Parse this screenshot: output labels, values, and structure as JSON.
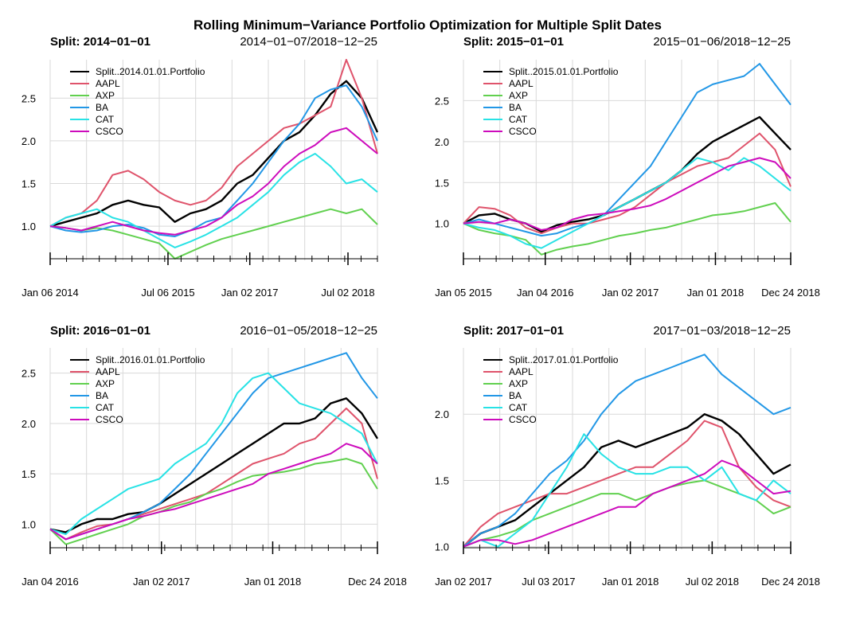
{
  "title": "Rolling Minimum−Variance Portfolio Optimization for Multiple Split Dates",
  "colors": {
    "Portfolio": "#000000",
    "AAPL": "#DF536B",
    "AXP": "#61D04F",
    "BA": "#2297E6",
    "CAT": "#28E2E5",
    "CSCO": "#CD0BBC"
  },
  "chart_data": [
    {
      "type": "line",
      "split_label": "Split:  2014−01−01",
      "range_label": "2014−01−07/2018−12−25",
      "xlabels": [
        "Jan 06 2014",
        "Jul 06 2015",
        "Jan 02 2017",
        "Jul 02 2018"
      ],
      "xlabel_pos": [
        0,
        0.36,
        0.61,
        0.91
      ],
      "ylim": [
        0.6,
        2.95
      ],
      "yticks": [
        "1.0",
        "1.5",
        "2.0",
        "2.5"
      ],
      "grid": true,
      "legend": "top-left",
      "series": [
        {
          "name": "Split..2014.01.01.Portfolio",
          "color_key": "Portfolio",
          "values": [
            1.0,
            1.05,
            1.1,
            1.15,
            1.25,
            1.3,
            1.25,
            1.22,
            1.05,
            1.15,
            1.2,
            1.3,
            1.5,
            1.6,
            1.8,
            2.0,
            2.1,
            2.3,
            2.55,
            2.7,
            2.5,
            2.1
          ]
        },
        {
          "name": "AAPL",
          "color_key": "AAPL",
          "values": [
            1.0,
            1.1,
            1.15,
            1.3,
            1.6,
            1.65,
            1.55,
            1.4,
            1.3,
            1.25,
            1.3,
            1.45,
            1.7,
            1.85,
            2.0,
            2.15,
            2.2,
            2.3,
            2.4,
            2.95,
            2.5,
            1.85
          ]
        },
        {
          "name": "AXP",
          "color_key": "AXP",
          "values": [
            1.0,
            0.98,
            0.95,
            0.98,
            0.95,
            0.9,
            0.85,
            0.8,
            0.62,
            0.7,
            0.78,
            0.85,
            0.9,
            0.95,
            1.0,
            1.05,
            1.1,
            1.15,
            1.2,
            1.15,
            1.2,
            1.02
          ]
        },
        {
          "name": "BA",
          "color_key": "BA",
          "values": [
            1.0,
            0.95,
            0.93,
            0.95,
            1.0,
            1.02,
            0.98,
            0.9,
            0.88,
            0.95,
            1.05,
            1.1,
            1.3,
            1.5,
            1.75,
            2.0,
            2.2,
            2.5,
            2.6,
            2.65,
            2.4,
            2.0
          ]
        },
        {
          "name": "CAT",
          "color_key": "CAT",
          "values": [
            1.0,
            1.1,
            1.15,
            1.2,
            1.1,
            1.05,
            0.95,
            0.85,
            0.75,
            0.82,
            0.9,
            1.0,
            1.1,
            1.25,
            1.4,
            1.6,
            1.75,
            1.85,
            1.7,
            1.5,
            1.55,
            1.4
          ]
        },
        {
          "name": "CSCO",
          "color_key": "CSCO",
          "values": [
            1.0,
            0.98,
            0.95,
            1.0,
            1.05,
            1.0,
            0.95,
            0.92,
            0.9,
            0.95,
            1.0,
            1.1,
            1.25,
            1.35,
            1.5,
            1.7,
            1.85,
            1.95,
            2.1,
            2.15,
            2.0,
            1.85
          ]
        }
      ]
    },
    {
      "type": "line",
      "split_label": "Split:  2015−01−01",
      "range_label": "2015−01−06/2018−12−25",
      "xlabels": [
        "Jan 05 2015",
        "Jan 04 2016",
        "Jan 02 2017",
        "Jan 01 2018",
        "Dec 24 2018"
      ],
      "xlabel_pos": [
        0,
        0.25,
        0.51,
        0.77,
        1.0
      ],
      "ylim": [
        0.55,
        3.0
      ],
      "yticks": [
        "1.0",
        "1.5",
        "2.0",
        "2.5"
      ],
      "grid": true,
      "legend": "top-left",
      "series": [
        {
          "name": "Split..2015.01.01.Portfolio",
          "color_key": "Portfolio",
          "values": [
            1.0,
            1.1,
            1.12,
            1.05,
            1.0,
            0.9,
            0.98,
            1.02,
            1.05,
            1.1,
            1.2,
            1.3,
            1.4,
            1.5,
            1.65,
            1.85,
            2.0,
            2.1,
            2.2,
            2.3,
            2.1,
            1.9
          ]
        },
        {
          "name": "AAPL",
          "color_key": "AAPL",
          "values": [
            1.0,
            1.2,
            1.18,
            1.1,
            0.95,
            0.88,
            0.95,
            1.0,
            1.0,
            1.05,
            1.1,
            1.2,
            1.35,
            1.5,
            1.6,
            1.7,
            1.75,
            1.8,
            1.95,
            2.1,
            1.9,
            1.45
          ]
        },
        {
          "name": "AXP",
          "color_key": "AXP",
          "values": [
            1.0,
            0.92,
            0.88,
            0.85,
            0.8,
            0.62,
            0.68,
            0.72,
            0.75,
            0.8,
            0.85,
            0.88,
            0.92,
            0.95,
            1.0,
            1.05,
            1.1,
            1.12,
            1.15,
            1.2,
            1.25,
            1.02
          ]
        },
        {
          "name": "BA",
          "color_key": "BA",
          "values": [
            1.0,
            1.05,
            1.0,
            0.95,
            0.9,
            0.85,
            0.88,
            0.95,
            1.0,
            1.1,
            1.3,
            1.5,
            1.7,
            2.0,
            2.3,
            2.6,
            2.7,
            2.75,
            2.8,
            2.95,
            2.7,
            2.45
          ]
        },
        {
          "name": "CAT",
          "color_key": "CAT",
          "values": [
            1.0,
            0.95,
            0.92,
            0.85,
            0.75,
            0.7,
            0.8,
            0.9,
            1.0,
            1.1,
            1.2,
            1.3,
            1.4,
            1.5,
            1.65,
            1.8,
            1.75,
            1.65,
            1.8,
            1.7,
            1.55,
            1.4
          ]
        },
        {
          "name": "CSCO",
          "color_key": "CSCO",
          "values": [
            1.0,
            1.02,
            1.0,
            1.05,
            1.0,
            0.92,
            0.95,
            1.05,
            1.1,
            1.12,
            1.15,
            1.18,
            1.22,
            1.3,
            1.4,
            1.5,
            1.6,
            1.7,
            1.75,
            1.8,
            1.75,
            1.55
          ]
        }
      ]
    },
    {
      "type": "line",
      "split_label": "Split:  2016−01−01",
      "range_label": "2016−01−05/2018−12−25",
      "xlabels": [
        "Jan 04 2016",
        "Jan 02 2017",
        "Jan 01 2018",
        "Dec 24 2018"
      ],
      "xlabel_pos": [
        0,
        0.34,
        0.68,
        1.0
      ],
      "ylim": [
        0.75,
        2.75
      ],
      "yticks": [
        "1.0",
        "1.5",
        "2.0",
        "2.5"
      ],
      "grid": true,
      "legend": "top-left",
      "series": [
        {
          "name": "Split..2016.01.01.Portfolio",
          "color_key": "Portfolio",
          "values": [
            0.95,
            0.92,
            1.0,
            1.05,
            1.05,
            1.1,
            1.12,
            1.2,
            1.3,
            1.4,
            1.5,
            1.6,
            1.7,
            1.8,
            1.9,
            2.0,
            2.0,
            2.05,
            2.2,
            2.25,
            2.1,
            1.85
          ]
        },
        {
          "name": "AAPL",
          "color_key": "AAPL",
          "values": [
            0.95,
            0.85,
            0.92,
            0.98,
            1.0,
            1.05,
            1.1,
            1.15,
            1.2,
            1.25,
            1.3,
            1.4,
            1.5,
            1.6,
            1.65,
            1.7,
            1.8,
            1.85,
            2.0,
            2.15,
            2.0,
            1.45
          ]
        },
        {
          "name": "AXP",
          "color_key": "AXP",
          "values": [
            0.95,
            0.8,
            0.85,
            0.9,
            0.95,
            1.0,
            1.08,
            1.12,
            1.18,
            1.22,
            1.3,
            1.35,
            1.42,
            1.48,
            1.5,
            1.52,
            1.55,
            1.6,
            1.62,
            1.65,
            1.6,
            1.35
          ]
        },
        {
          "name": "BA",
          "color_key": "BA",
          "values": [
            0.95,
            0.85,
            0.9,
            0.95,
            1.0,
            1.05,
            1.12,
            1.2,
            1.35,
            1.5,
            1.7,
            1.9,
            2.1,
            2.3,
            2.45,
            2.5,
            2.55,
            2.6,
            2.65,
            2.7,
            2.45,
            2.25
          ]
        },
        {
          "name": "CAT",
          "color_key": "CAT",
          "values": [
            0.95,
            0.9,
            1.05,
            1.15,
            1.25,
            1.35,
            1.4,
            1.45,
            1.6,
            1.7,
            1.8,
            2.0,
            2.3,
            2.45,
            2.5,
            2.35,
            2.2,
            2.15,
            2.1,
            2.0,
            1.9,
            1.6
          ]
        },
        {
          "name": "CSCO",
          "color_key": "CSCO",
          "values": [
            0.95,
            0.85,
            0.9,
            0.95,
            1.0,
            1.05,
            1.08,
            1.12,
            1.15,
            1.2,
            1.25,
            1.3,
            1.35,
            1.4,
            1.5,
            1.55,
            1.6,
            1.65,
            1.7,
            1.8,
            1.75,
            1.6
          ]
        }
      ]
    },
    {
      "type": "line",
      "split_label": "Split:  2017−01−01",
      "range_label": "2017−01−03/2018−12−25",
      "xlabels": [
        "Jan 02 2017",
        "Jul 03 2017",
        "Jan 01 2018",
        "Jul 02 2018",
        "Dec 24 2018"
      ],
      "xlabel_pos": [
        0,
        0.26,
        0.51,
        0.76,
        1.0
      ],
      "ylim": [
        0.98,
        2.5
      ],
      "yticks": [
        "1.0",
        "1.5",
        "2.0"
      ],
      "grid": true,
      "legend": "top-left",
      "series": [
        {
          "name": "Split..2017.01.01.Portfolio",
          "color_key": "Portfolio",
          "values": [
            1.0,
            1.1,
            1.15,
            1.2,
            1.3,
            1.4,
            1.5,
            1.6,
            1.75,
            1.8,
            1.75,
            1.8,
            1.85,
            1.9,
            2.0,
            1.95,
            1.85,
            1.7,
            1.55,
            1.62
          ]
        },
        {
          "name": "AAPL",
          "color_key": "AAPL",
          "values": [
            1.0,
            1.15,
            1.25,
            1.3,
            1.35,
            1.4,
            1.4,
            1.45,
            1.5,
            1.55,
            1.6,
            1.6,
            1.7,
            1.8,
            1.95,
            1.9,
            1.6,
            1.45,
            1.35,
            1.3
          ]
        },
        {
          "name": "AXP",
          "color_key": "AXP",
          "values": [
            1.0,
            1.05,
            1.08,
            1.12,
            1.2,
            1.25,
            1.3,
            1.35,
            1.4,
            1.4,
            1.35,
            1.4,
            1.45,
            1.48,
            1.5,
            1.45,
            1.4,
            1.35,
            1.25,
            1.3
          ]
        },
        {
          "name": "BA",
          "color_key": "BA",
          "values": [
            1.0,
            1.1,
            1.15,
            1.25,
            1.4,
            1.55,
            1.65,
            1.8,
            2.0,
            2.15,
            2.25,
            2.3,
            2.35,
            2.4,
            2.45,
            2.3,
            2.2,
            2.1,
            2.0,
            2.05
          ]
        },
        {
          "name": "CAT",
          "color_key": "CAT",
          "values": [
            1.0,
            1.05,
            1.0,
            1.1,
            1.2,
            1.4,
            1.6,
            1.85,
            1.7,
            1.6,
            1.55,
            1.55,
            1.6,
            1.6,
            1.5,
            1.6,
            1.4,
            1.35,
            1.5,
            1.4
          ]
        },
        {
          "name": "CSCO",
          "color_key": "CSCO",
          "values": [
            1.0,
            1.05,
            1.05,
            1.02,
            1.05,
            1.1,
            1.15,
            1.2,
            1.25,
            1.3,
            1.3,
            1.4,
            1.45,
            1.5,
            1.55,
            1.65,
            1.6,
            1.5,
            1.4,
            1.42
          ]
        }
      ]
    }
  ]
}
